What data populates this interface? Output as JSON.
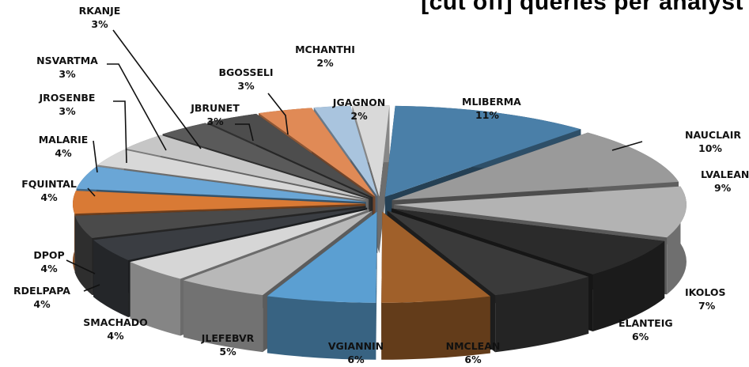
{
  "chart_data": {
    "type": "pie",
    "title": "[cut off] queries per analyst",
    "labels": [
      "MLIBERMA",
      "NAUCLAIR",
      "LVALEANU",
      "IKOLOS",
      "ELANTEIG",
      "NMCLEAN",
      "VGIANNIN",
      "JLEFEBVR",
      "SMACHADO",
      "RDELPAPA",
      "DPOP",
      "FQUINTAL",
      "MALARIE",
      "JROSENBE",
      "NSVARTMA",
      "RKANJE",
      "JBRUNET",
      "BGOSSELI",
      "MCHANTHI",
      "JGAGNON"
    ],
    "percent_labels": [
      "11%",
      "10%",
      "9%",
      "7%",
      "6%",
      "6%",
      "6%",
      "5%",
      "4%",
      "4%",
      "4%",
      "4%",
      "4%",
      "3%",
      "3%",
      "3%",
      "3%",
      "3%",
      "2%",
      "2%"
    ],
    "values": [
      11,
      10,
      9,
      7,
      6,
      6,
      6,
      5,
      4,
      4,
      4,
      4,
      4,
      3,
      3,
      3,
      3,
      3,
      2,
      2
    ],
    "colors": [
      "#4a7fa8",
      "#9a9a9a",
      "#b3b3b3",
      "#2b2b2b",
      "#3a3a3a",
      "#a0602a",
      "#5b9fd2",
      "#b8b8b8",
      "#d6d6d6",
      "#3a3d42",
      "#4a4a4a",
      "#d97a35",
      "#6aa6d6",
      "#d8d8d8",
      "#c6c6c6",
      "#5a5a5a",
      "#4d4d4d",
      "#e08a56",
      "#a9c4de",
      "#d9d9d9"
    ],
    "exploded": true,
    "three_d": true,
    "legend": "none"
  }
}
